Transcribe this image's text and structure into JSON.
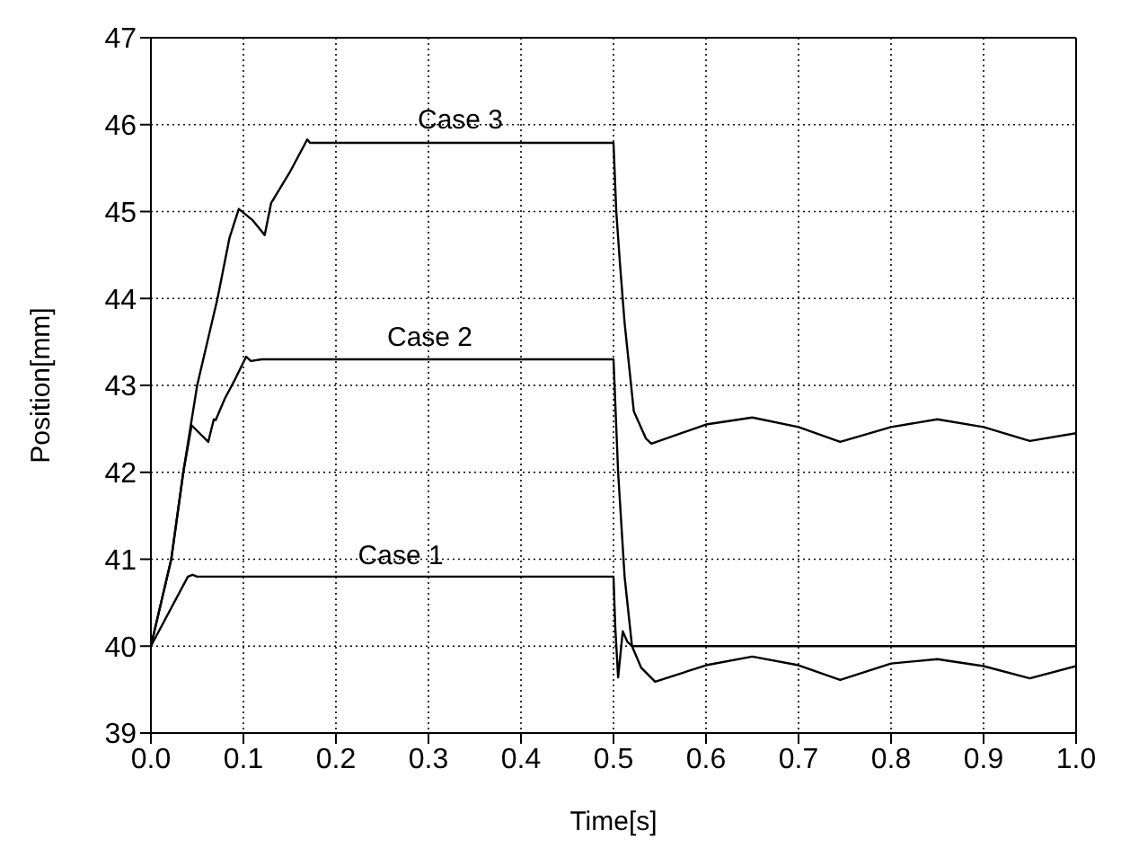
{
  "chart_data": {
    "type": "line",
    "xlabel": "Time[s]",
    "ylabel": "Position[mm]",
    "xlim": [
      0,
      1
    ],
    "ylim": [
      39,
      47
    ],
    "xticks": [
      {
        "value": 0,
        "label": "0.0"
      },
      0.1,
      0.2,
      0.3,
      0.4,
      0.5,
      0.6,
      0.7,
      0.8,
      0.9,
      {
        "value": 1,
        "label": "1.0"
      }
    ],
    "yticks": [
      39,
      40,
      41,
      42,
      43,
      44,
      45,
      46,
      47
    ],
    "grid": true,
    "marker": "none",
    "line_style": "solid",
    "series": [
      {
        "name": "Case 1",
        "color": "#000000",
        "x": [
          0,
          0.04,
          0.045,
          0.05,
          0.5,
          0.502,
          0.505,
          0.51,
          0.515,
          0.52,
          0.525,
          1
        ],
        "values": [
          40,
          40.8,
          40.82,
          40.8,
          40.8,
          40.2,
          39.64,
          40.17,
          40.05,
          40,
          40,
          40
        ]
      },
      {
        "name": "Case 2",
        "color": "#000000",
        "x": [
          0,
          0.022,
          0.035,
          0.044,
          0.062,
          0.068,
          0.07,
          0.08,
          0.09,
          0.103,
          0.108,
          0.12,
          0.5,
          0.505,
          0.512,
          0.52,
          0.53,
          0.545,
          0.6,
          0.65,
          0.7,
          0.745,
          0.8,
          0.85,
          0.9,
          0.95,
          1
        ],
        "values": [
          40,
          41,
          42,
          42.54,
          42.35,
          42.61,
          42.6,
          42.85,
          43.05,
          43.33,
          43.28,
          43.3,
          43.3,
          42,
          40.8,
          40,
          39.75,
          39.59,
          39.78,
          39.88,
          39.78,
          39.61,
          39.8,
          39.85,
          39.77,
          39.63,
          39.77
        ]
      },
      {
        "name": "Case 3",
        "color": "#000000",
        "x": [
          0,
          0.022,
          0.035,
          0.05,
          0.072,
          0.085,
          0.095,
          0.11,
          0.123,
          0.13,
          0.133,
          0.15,
          0.169,
          0.172,
          0.18,
          0.5,
          0.503,
          0.507,
          0.512,
          0.522,
          0.535,
          0.541,
          0.6,
          0.65,
          0.7,
          0.745,
          0.8,
          0.85,
          0.9,
          0.95,
          1
        ],
        "values": [
          40,
          41,
          42,
          43,
          44,
          44.7,
          45.03,
          44.9,
          44.73,
          45.1,
          45.15,
          45.45,
          45.83,
          45.79,
          45.79,
          45.79,
          45,
          44.4,
          43.72,
          42.7,
          42.39,
          42.33,
          42.55,
          42.63,
          42.52,
          42.35,
          42.52,
          42.61,
          42.52,
          42.36,
          42.45
        ]
      }
    ]
  }
}
